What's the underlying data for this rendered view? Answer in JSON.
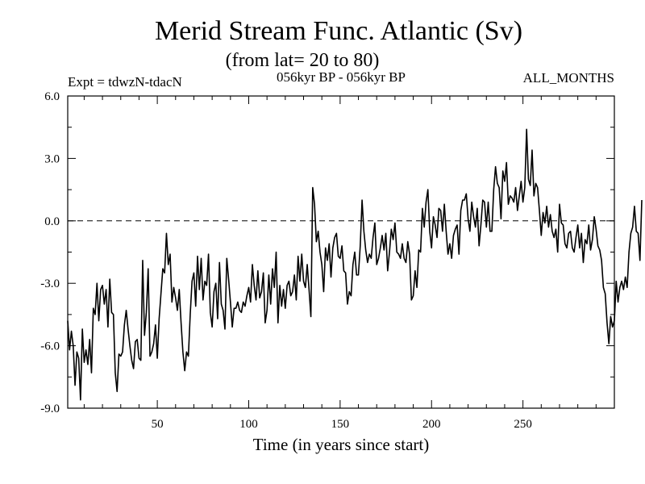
{
  "chart_data": {
    "type": "line",
    "title": "Merid Stream Func. Atlantic (Sv)",
    "subtitle": "(from lat= 20 to 80)",
    "header_left": "Expt = tdwzN-tdacN",
    "header_center": "056kyr BP - 056kyr BP",
    "header_right": "ALL_MONTHS",
    "xlabel": "Time (in years since start)",
    "ylabel": "",
    "xlim": [
      1,
      300
    ],
    "ylim": [
      -9,
      6
    ],
    "x_ticks": [
      50,
      100,
      150,
      200,
      250
    ],
    "x_tick_labels": [
      "50",
      "100",
      "150",
      "200",
      "250"
    ],
    "y_ticks": [
      -9,
      -6,
      -3,
      0,
      3,
      6
    ],
    "y_tick_labels": [
      "-9.0",
      "-6.0",
      "-3.0",
      "0.0",
      "3.0",
      "6.0"
    ],
    "reference_line": {
      "y": 0,
      "style": "dashed"
    },
    "grid": false,
    "line_color": "#000000",
    "series": [
      {
        "x_start": 1,
        "x_step": 1,
        "values": [
          -4.8,
          -6.2,
          -5.3,
          -6.0,
          -7.9,
          -6.3,
          -6.6,
          -8.6,
          -5.2,
          -6.8,
          -6.2,
          -6.9,
          -5.7,
          -7.3,
          -4.2,
          -4.5,
          -3.0,
          -4.8,
          -3.3,
          -3.1,
          -4.0,
          -3.3,
          -5.1,
          -2.8,
          -4.4,
          -4.5,
          -7.3,
          -8.2,
          -6.4,
          -6.5,
          -6.3,
          -5.0,
          -4.3,
          -5.2,
          -6.0,
          -6.7,
          -7.1,
          -5.8,
          -5.7,
          -6.6,
          -6.7,
          -1.9,
          -5.5,
          -4.4,
          -2.3,
          -6.5,
          -6.3,
          -5.9,
          -5.0,
          -6.6,
          -4.7,
          -3.5,
          -2.3,
          -2.5,
          -0.6,
          -2.1,
          -1.6,
          -3.9,
          -3.2,
          -3.7,
          -4.3,
          -3.3,
          -4.9,
          -6.3,
          -7.2,
          -6.3,
          -6.5,
          -4.5,
          -2.9,
          -2.5,
          -4.1,
          -1.7,
          -3.3,
          -1.8,
          -3.8,
          -2.9,
          -3.1,
          -1.6,
          -4.4,
          -5.1,
          -3.4,
          -3.0,
          -4.7,
          -2.0,
          -4.0,
          -4.3,
          -5.2,
          -1.8,
          -2.8,
          -3.9,
          -5.1,
          -4.2,
          -4.2,
          -3.9,
          -4.3,
          -4.4,
          -3.9,
          -4.1,
          -3.6,
          -3.2,
          -3.9,
          -2.1,
          -3.1,
          -3.8,
          -2.4,
          -3.7,
          -3.4,
          -2.5,
          -4.9,
          -4.3,
          -2.6,
          -4.0,
          -2.3,
          -3.2,
          -1.5,
          -4.9,
          -3.1,
          -4.1,
          -3.3,
          -4.2,
          -3.1,
          -2.9,
          -3.6,
          -3.4,
          -2.6,
          -3.8,
          -1.7,
          -2.9,
          -1.6,
          -2.9,
          -3.2,
          -2.1,
          -3.3,
          -4.6,
          1.6,
          0.8,
          -1.0,
          -0.5,
          -1.5,
          -2.1,
          -3.4,
          -1.3,
          -1.9,
          -1.1,
          -2.7,
          -1.3,
          -0.8,
          -0.6,
          -1.7,
          -1.8,
          -1.2,
          -2.4,
          -2.5,
          -4.0,
          -3.4,
          -3.6,
          -2.1,
          -1.5,
          -2.6,
          -2.6,
          -1.2,
          1.0,
          -0.5,
          -1.4,
          -2.0,
          -1.6,
          -1.8,
          -0.8,
          -0.1,
          -2.1,
          -1.8,
          -1.3,
          -0.7,
          -1.4,
          -0.6,
          -2.4,
          -1.5,
          -0.4,
          -0.9,
          -0.1,
          -1.5,
          -1.6,
          -1.8,
          -1.1,
          -1.8,
          -2.0,
          -1.0,
          -1.6,
          -3.8,
          -3.6,
          -2.4,
          -3.2,
          -1.4,
          -1.5,
          0.6,
          -0.3,
          0.9,
          1.5,
          -0.5,
          -1.3,
          0.2,
          -0.2,
          -0.8,
          0.6,
          0.5,
          -0.5,
          0.8,
          -0.5,
          -1.6,
          -1.1,
          -1.8,
          -0.7,
          -0.4,
          -0.2,
          -1.6,
          0.5,
          1.0,
          1.0,
          1.3,
          0.1,
          -0.5,
          0.9,
          0.2,
          -0.3,
          0.6,
          -1.2,
          -0.2,
          1.0,
          0.9,
          -0.3,
          0.9,
          -0.5,
          -0.5,
          1.5,
          2.6,
          1.8,
          1.6,
          0.1,
          2.4,
          1.9,
          2.8,
          0.8,
          1.2,
          1.1,
          0.9,
          1.6,
          0.5,
          1.2,
          1.9,
          0.9,
          1.6,
          4.4,
          2.0,
          1.7,
          3.4,
          1.2,
          1.8,
          1.6,
          0.5,
          -0.7,
          0.4,
          -0.1,
          0.7,
          -0.3,
          0.3,
          -0.5,
          -0.8,
          -0.4,
          -1.5,
          0.8,
          -0.1,
          -0.2,
          -1.1,
          -1.3,
          -0.6,
          -0.5,
          -1.3,
          -1.5,
          -0.8,
          -0.2,
          -1.3,
          -0.6,
          -2.0,
          -0.9,
          -1.1,
          -0.2,
          -1.4,
          -0.9,
          0.2,
          -0.4,
          -1.2,
          -1.4,
          -1.9,
          -3.2,
          -3.5,
          -4.9,
          -5.9,
          -4.6,
          -5.1,
          -4.8,
          -2.9,
          -3.9,
          -3.2,
          -2.9,
          -3.3,
          -2.7,
          -3.2,
          -1.5,
          -0.6,
          -0.3,
          0.7,
          -0.5,
          -0.6,
          -1.9,
          1.0
        ]
      }
    ]
  }
}
